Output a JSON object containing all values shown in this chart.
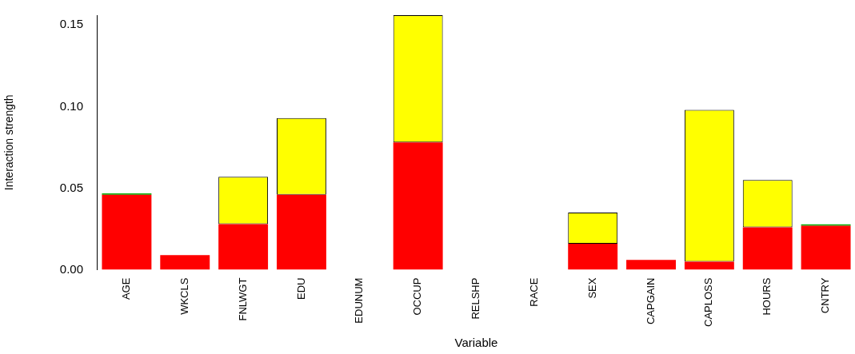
{
  "chart_data": {
    "type": "bar",
    "stacked": true,
    "xlabel": "Variable",
    "ylabel": "Interaction strength",
    "categories": [
      "AGE",
      "WKCLS",
      "FNLWGT",
      "EDU",
      "EDUNUM",
      "OCCUP",
      "RELSHP",
      "RACE",
      "SEX",
      "CAPGAIN",
      "CAPLOSS",
      "HOURS",
      "CNTRY"
    ],
    "series": [
      {
        "color": "#ff0000",
        "values": [
          0.046,
          0.009,
          0.028,
          0.046,
          0,
          0.078,
          0,
          0,
          0.016,
          0.006,
          0.005,
          0.026,
          0.027
        ]
      },
      {
        "color": "#ffff00",
        "values": [
          null,
          null,
          0.029,
          0.047,
          null,
          0.078,
          null,
          null,
          0.019,
          null,
          0.093,
          0.029,
          null
        ]
      },
      {
        "color": "#00aa00",
        "values": [
          0.0008,
          null,
          null,
          null,
          null,
          null,
          null,
          null,
          null,
          null,
          null,
          null,
          0.0008
        ]
      }
    ],
    "ylim": [
      0,
      0.156
    ],
    "yticks": [
      {
        "value": 0,
        "label": "0.00"
      },
      {
        "value": 0.05,
        "label": "0.05"
      },
      {
        "value": 0.1,
        "label": "0.10"
      },
      {
        "value": 0.15,
        "label": "0.15"
      }
    ],
    "grid": false,
    "legend": false
  }
}
